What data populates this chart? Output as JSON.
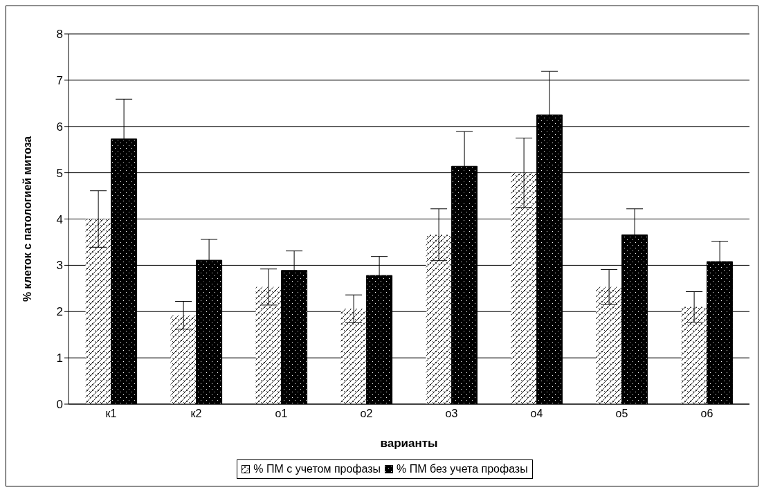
{
  "chart_data": {
    "type": "bar",
    "xlabel": "варианты",
    "ylabel": "% клеток с патологией митоза",
    "categories": [
      "к1",
      "к2",
      "о1",
      "о2",
      "о3",
      "о4",
      "о5",
      "о6"
    ],
    "series": [
      {
        "name": "% ПМ с учетом профазы",
        "color": "#ffffff",
        "values": [
          4.0,
          1.92,
          2.53,
          2.06,
          3.66,
          5.0,
          2.53,
          2.1
        ],
        "errors": [
          0.61,
          0.3,
          0.39,
          0.3,
          0.56,
          0.75,
          0.38,
          0.33
        ]
      },
      {
        "name": "% ПМ без учета профазы",
        "color": "#000000",
        "values": [
          5.73,
          3.11,
          2.89,
          2.78,
          5.14,
          6.25,
          3.66,
          3.08
        ],
        "errors": [
          0.86,
          0.45,
          0.42,
          0.41,
          0.75,
          0.94,
          0.56,
          0.44
        ]
      }
    ],
    "ylim": [
      0,
      8
    ],
    "yticks": [
      0,
      1,
      2,
      3,
      4,
      5,
      6,
      7,
      8
    ],
    "grid": "y",
    "legend": "bottom"
  }
}
